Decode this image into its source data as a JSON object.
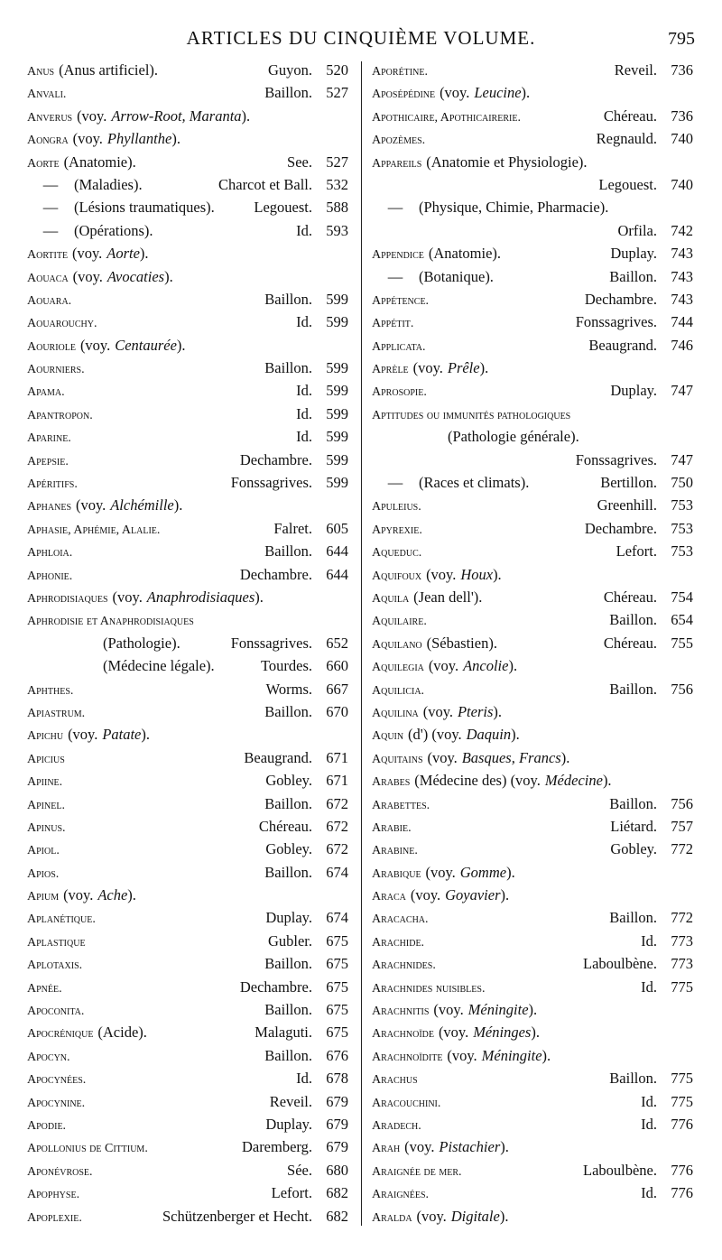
{
  "header": {
    "title": "ARTICLES DU CINQUIÈME VOLUME.",
    "page_number": 795
  },
  "columns": [
    {
      "entries": [
        {
          "term": "Anus",
          "note": "(Anus artificiel).",
          "author": "Guyon.",
          "page": 520
        },
        {
          "term": "Anvali.",
          "author": "Baillon.",
          "page": 527
        },
        {
          "term": "Anverus",
          "note": "(voy.",
          "ref": "Arrow-Root, Maranta",
          "end": ")."
        },
        {
          "term": "Aongra",
          "note": "(voy.",
          "ref": "Phyllanthe",
          "end": ")."
        },
        {
          "term": "Aorte",
          "note": "(Anatomie).",
          "author": "See.",
          "page": 527
        },
        {
          "dash": "—",
          "note": "(Maladies).",
          "author": "Charcot et Ball.",
          "page": 532
        },
        {
          "dash": "—",
          "note": "(Lésions traumatiques).",
          "author": "Legouest.",
          "page": 588
        },
        {
          "dash": "—",
          "note": "(Opérations).",
          "author": "Id.",
          "page": 593
        },
        {
          "term": "Aortite",
          "note": "(voy.",
          "ref": "Aorte",
          "end": ")."
        },
        {
          "term": "Aouaca",
          "note": "(voy.",
          "ref": "Avocaties",
          "end": ")."
        },
        {
          "term": "Aouara.",
          "author": "Baillon.",
          "page": 599
        },
        {
          "term": "Aouarouchy.",
          "author": "Id.",
          "page": 599
        },
        {
          "term": "Aouriole",
          "note": "(voy.",
          "ref": "Centaurée",
          "end": ")."
        },
        {
          "term": "Aourniers.",
          "author": "Baillon.",
          "page": 599
        },
        {
          "term": "Apama.",
          "author": "Id.",
          "page": 599
        },
        {
          "term": "Apantropon.",
          "author": "Id.",
          "page": 599
        },
        {
          "term": "Aparine.",
          "author": "Id.",
          "page": 599
        },
        {
          "term": "Apepsie.",
          "author": "Dechambre.",
          "page": 599
        },
        {
          "term": "Apéritifs.",
          "author": "Fonssagrives.",
          "page": 599
        },
        {
          "term": "Aphanes",
          "note": "(voy.",
          "ref": "Alchémille",
          "end": ")."
        },
        {
          "term": "Aphasie, Aphémie, Alalie.",
          "author": "Falret.",
          "page": 605
        },
        {
          "term": "Aphloia.",
          "author": "Baillon.",
          "page": 644
        },
        {
          "term": "Aphonie.",
          "author": "Dechambre.",
          "page": 644
        },
        {
          "term": "Aphrodisiaques",
          "note": "(voy.",
          "ref": "Anaphrodisiaques",
          "end": ")."
        },
        {
          "term": "Aphrodisie et Anaphrodisiaques"
        },
        {
          "note": "(Pathologie).",
          "author": "Fonssagrives.",
          "page": 652
        },
        {
          "note": "(Médecine légale).",
          "author": "Tourdes.",
          "page": 660
        },
        {
          "term": "Aphthes.",
          "author": "Worms.",
          "page": 667
        },
        {
          "term": "Apiastrum.",
          "author": "Baillon.",
          "page": 670
        },
        {
          "term": "Apichu",
          "note": "(voy.",
          "ref": "Patate",
          "end": ")."
        },
        {
          "term": "Apicius",
          "author": "Beaugrand.",
          "page": 671
        },
        {
          "term": "Apiine.",
          "author": "Gobley.",
          "page": 671
        },
        {
          "term": "Apinel.",
          "author": "Baillon.",
          "page": 672
        },
        {
          "term": "Apinus.",
          "author": "Chéreau.",
          "page": 672
        },
        {
          "term": "Apiol.",
          "author": "Gobley.",
          "page": 672
        },
        {
          "term": "Apios.",
          "author": "Baillon.",
          "page": 674
        },
        {
          "term": "Apium",
          "note": "(voy.",
          "ref": "Ache",
          "end": ")."
        },
        {
          "term": "Aplanétique.",
          "author": "Duplay.",
          "page": 674
        },
        {
          "term": "Aplastique",
          "author": "Gubler.",
          "page": 675
        },
        {
          "term": "Aplotaxis.",
          "author": "Baillon.",
          "page": 675
        },
        {
          "term": "Apnée.",
          "author": "Dechambre.",
          "page": 675
        },
        {
          "term": "Apoconita.",
          "author": "Baillon.",
          "page": 675
        },
        {
          "term": "Apocrénique",
          "note": "(Acide).",
          "author": "Malaguti.",
          "page": 675
        },
        {
          "term": "Apocyn.",
          "author": "Baillon.",
          "page": 676
        },
        {
          "term": "Apocynées.",
          "author": "Id.",
          "page": 678
        },
        {
          "term": "Apocynine.",
          "author": "Reveil.",
          "page": 679
        },
        {
          "term": "Apodie.",
          "author": "Duplay.",
          "page": 679
        },
        {
          "term": "Apollonius de Cittium.",
          "author": "Daremberg.",
          "page": 679
        },
        {
          "term": "Aponévrose.",
          "author": "Sée.",
          "page": 680
        },
        {
          "term": "Apophyse.",
          "author": "Lefort.",
          "page": 682
        },
        {
          "term": "Apoplexie.",
          "author": "Schützenberger et Hecht.",
          "page": 682
        }
      ]
    },
    {
      "entries": [
        {
          "term": "Aporétine.",
          "author": "Reveil.",
          "page": 736
        },
        {
          "term": "Aposépédine",
          "note": "(voy.",
          "ref": "Leucine",
          "end": ")."
        },
        {
          "term": "Apothicaire, Apothicairerie.",
          "author": "Chéreau.",
          "page": 736
        },
        {
          "term": "Apozèmes.",
          "author": "Regnauld.",
          "page": 740
        },
        {
          "term": "Appareils",
          "note": "(Anatomie et Physiologie)."
        },
        {
          "author": "Legouest.",
          "page": 740
        },
        {
          "dash": "—",
          "note": "(Physique, Chimie, Pharmacie)."
        },
        {
          "author": "Orfila.",
          "page": 742
        },
        {
          "term": "Appendice",
          "note": "(Anatomie).",
          "author": "Duplay.",
          "page": 743
        },
        {
          "dash": "—",
          "note": "(Botanique).",
          "author": "Baillon.",
          "page": 743
        },
        {
          "term": "Appétence.",
          "author": "Dechambre.",
          "page": 743
        },
        {
          "term": "Appétit.",
          "author": "Fonssagrives.",
          "page": 744
        },
        {
          "term": "Applicata.",
          "author": "Beaugrand.",
          "page": 746
        },
        {
          "term": "Aprèle",
          "note": "(voy.",
          "ref": "Prêle",
          "end": ")."
        },
        {
          "term": "Aprosopie.",
          "author": "Duplay.",
          "page": 747
        },
        {
          "term": "Aptitudes ou immunités pathologiques"
        },
        {
          "note": "(Pathologie générale)."
        },
        {
          "author": "Fonssagrives.",
          "page": 747
        },
        {
          "dash": "—",
          "note": "(Races et climats).",
          "author": "Bertillon.",
          "page": 750
        },
        {
          "term": "Apuleius.",
          "author": "Greenhill.",
          "page": 753
        },
        {
          "term": "Apyrexie.",
          "author": "Dechambre.",
          "page": 753
        },
        {
          "term": "Aqueduc.",
          "author": "Lefort.",
          "page": 753
        },
        {
          "term": "Aquifoux",
          "note": "(voy.",
          "ref": "Houx",
          "end": ")."
        },
        {
          "term": "Aquila",
          "note": "(Jean dell').",
          "author": "Chéreau.",
          "page": 754
        },
        {
          "term": "Aquilaire.",
          "author": "Baillon.",
          "page": 654
        },
        {
          "term": "Aquilano",
          "note": "(Sébastien).",
          "author": "Chéreau.",
          "page": 755
        },
        {
          "term": "Aquilegia",
          "note": "(voy.",
          "ref": "Ancolie",
          "end": ")."
        },
        {
          "term": "Aquilicia.",
          "author": "Baillon.",
          "page": 756
        },
        {
          "term": "Aquilina",
          "note": "(voy.",
          "ref": "Pteris",
          "end": ")."
        },
        {
          "term": "Aquin",
          "note": "(d') (voy.",
          "ref": "Daquin",
          "end": ")."
        },
        {
          "term": "Aquitains",
          "note": "(voy.",
          "ref": "Basques, Francs",
          "end": ")."
        },
        {
          "term": "Arabes",
          "note": "(Médecine des) (voy.",
          "ref": "Médecine",
          "end": ")."
        },
        {
          "term": "Arabettes.",
          "author": "Baillon.",
          "page": 756
        },
        {
          "term": "Arabie.",
          "author": "Liétard.",
          "page": 757
        },
        {
          "term": "Arabine.",
          "author": "Gobley.",
          "page": 772
        },
        {
          "term": "Arabique",
          "note": "(voy.",
          "ref": "Gomme",
          "end": ")."
        },
        {
          "term": "Araca",
          "note": "(voy.",
          "ref": "Goyavier",
          "end": ")."
        },
        {
          "term": "Aracacha.",
          "author": "Baillon.",
          "page": 772
        },
        {
          "term": "Arachide.",
          "author": "Id.",
          "page": 773
        },
        {
          "term": "Arachnides.",
          "author": "Laboulbène.",
          "page": 773
        },
        {
          "term": "Arachnides nuisibles.",
          "author": "Id.",
          "page": 775
        },
        {
          "term": "Arachnitis",
          "note": "(voy.",
          "ref": "Méningite",
          "end": ")."
        },
        {
          "term": "Arachnoïde",
          "note": "(voy.",
          "ref": "Méninges",
          "end": ")."
        },
        {
          "term": "Arachnoïdite",
          "note": "(voy.",
          "ref": "Méningite",
          "end": ")."
        },
        {
          "term": "Arachus",
          "author": "Baillon.",
          "page": 775
        },
        {
          "term": "Aracouchini.",
          "author": "Id.",
          "page": 775
        },
        {
          "term": "Aradech.",
          "author": "Id.",
          "page": 776
        },
        {
          "term": "Arah",
          "note": "(voy.",
          "ref": "Pistachier",
          "end": ")."
        },
        {
          "term": "Araignée de mer.",
          "author": "Laboulbène.",
          "page": 776
        },
        {
          "term": "Araignées.",
          "author": "Id.",
          "page": 776
        },
        {
          "term": "Aralda",
          "note": "(voy.",
          "ref": "Digitale",
          "end": ")."
        }
      ]
    }
  ]
}
